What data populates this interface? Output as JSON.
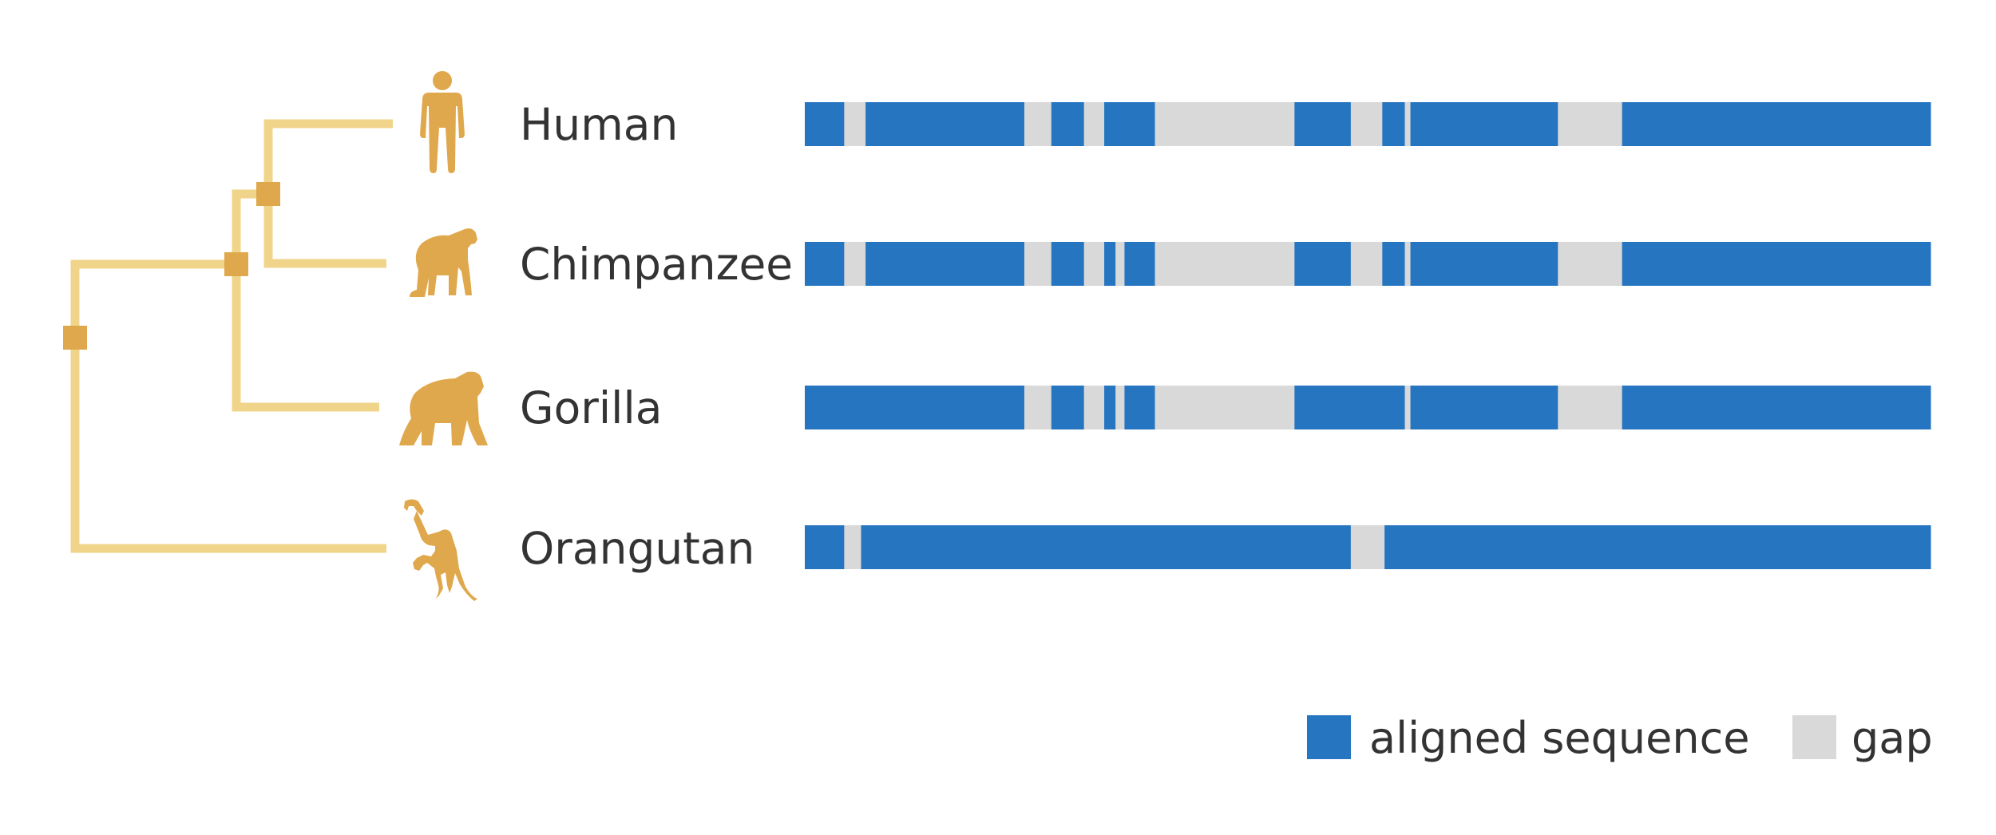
{
  "colors": {
    "aligned": "#2575C0",
    "gap": "#D9D9D9",
    "tree_branch": "#F0D48A",
    "tree_node": "#E0A84C",
    "silhouette": "#E0A84C",
    "text": "#333333"
  },
  "tree": {
    "topology": "(((Human,Chimpanzee),Gorilla),Orangutan)"
  },
  "species": [
    {
      "name": "Human",
      "icon": "human-icon",
      "segments": [
        {
          "type": "aligned",
          "start": 0,
          "end": 3.5
        },
        {
          "type": "gap",
          "start": 3.5,
          "end": 5.4
        },
        {
          "type": "aligned",
          "start": 5.4,
          "end": 19.5
        },
        {
          "type": "gap",
          "start": 19.5,
          "end": 21.9
        },
        {
          "type": "aligned",
          "start": 21.9,
          "end": 24.8
        },
        {
          "type": "gap",
          "start": 24.8,
          "end": 26.6
        },
        {
          "type": "aligned",
          "start": 26.6,
          "end": 31.1
        },
        {
          "type": "gap",
          "start": 31.1,
          "end": 43.5
        },
        {
          "type": "aligned",
          "start": 43.5,
          "end": 48.5
        },
        {
          "type": "gap",
          "start": 48.5,
          "end": 51.3
        },
        {
          "type": "aligned",
          "start": 51.3,
          "end": 53.3
        },
        {
          "type": "gap",
          "start": 53.3,
          "end": 53.8
        },
        {
          "type": "aligned",
          "start": 53.8,
          "end": 66.9
        },
        {
          "type": "gap",
          "start": 66.9,
          "end": 72.6
        },
        {
          "type": "aligned",
          "start": 72.6,
          "end": 100
        }
      ]
    },
    {
      "name": "Chimpanzee",
      "icon": "chimpanzee-icon",
      "segments": [
        {
          "type": "aligned",
          "start": 0,
          "end": 3.5
        },
        {
          "type": "gap",
          "start": 3.5,
          "end": 5.4
        },
        {
          "type": "aligned",
          "start": 5.4,
          "end": 19.5
        },
        {
          "type": "gap",
          "start": 19.5,
          "end": 21.9
        },
        {
          "type": "aligned",
          "start": 21.9,
          "end": 24.8
        },
        {
          "type": "gap",
          "start": 24.8,
          "end": 26.6
        },
        {
          "type": "aligned",
          "start": 26.6,
          "end": 27.6
        },
        {
          "type": "gap",
          "start": 27.6,
          "end": 28.4
        },
        {
          "type": "aligned",
          "start": 28.4,
          "end": 31.1
        },
        {
          "type": "gap",
          "start": 31.1,
          "end": 43.5
        },
        {
          "type": "aligned",
          "start": 43.5,
          "end": 48.5
        },
        {
          "type": "gap",
          "start": 48.5,
          "end": 51.3
        },
        {
          "type": "aligned",
          "start": 51.3,
          "end": 53.3
        },
        {
          "type": "gap",
          "start": 53.3,
          "end": 53.8
        },
        {
          "type": "aligned",
          "start": 53.8,
          "end": 66.9
        },
        {
          "type": "gap",
          "start": 66.9,
          "end": 72.6
        },
        {
          "type": "aligned",
          "start": 72.6,
          "end": 100
        }
      ]
    },
    {
      "name": "Gorilla",
      "icon": "gorilla-icon",
      "segments": [
        {
          "type": "aligned",
          "start": 0,
          "end": 19.5
        },
        {
          "type": "gap",
          "start": 19.5,
          "end": 21.9
        },
        {
          "type": "aligned",
          "start": 21.9,
          "end": 24.8
        },
        {
          "type": "gap",
          "start": 24.8,
          "end": 26.6
        },
        {
          "type": "aligned",
          "start": 26.6,
          "end": 27.6
        },
        {
          "type": "gap",
          "start": 27.6,
          "end": 28.4
        },
        {
          "type": "aligned",
          "start": 28.4,
          "end": 31.1
        },
        {
          "type": "gap",
          "start": 31.1,
          "end": 43.5
        },
        {
          "type": "aligned",
          "start": 43.5,
          "end": 53.3
        },
        {
          "type": "gap",
          "start": 53.3,
          "end": 53.8
        },
        {
          "type": "aligned",
          "start": 53.8,
          "end": 66.9
        },
        {
          "type": "gap",
          "start": 66.9,
          "end": 72.6
        },
        {
          "type": "aligned",
          "start": 72.6,
          "end": 100
        }
      ]
    },
    {
      "name": "Orangutan",
      "icon": "orangutan-icon",
      "segments": [
        {
          "type": "aligned",
          "start": 0,
          "end": 3.5
        },
        {
          "type": "gap",
          "start": 3.5,
          "end": 5.0
        },
        {
          "type": "aligned",
          "start": 5.0,
          "end": 48.5
        },
        {
          "type": "gap",
          "start": 48.5,
          "end": 51.5
        },
        {
          "type": "aligned",
          "start": 51.5,
          "end": 100
        }
      ]
    }
  ],
  "legend": {
    "aligned_label": "aligned sequence",
    "gap_label": "gap"
  }
}
